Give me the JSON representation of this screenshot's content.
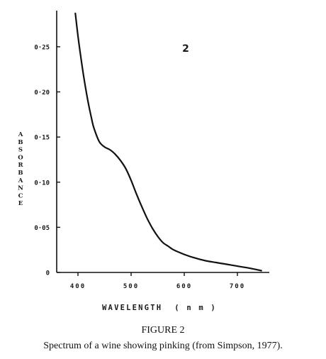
{
  "figure": {
    "number": "FIGURE 2",
    "caption": "Spectrum of a wine showing pinking (from Simpson, 1977)."
  },
  "chart_data": {
    "type": "line",
    "annotation": "2",
    "xlabel": "WAVELENGTH (nm)",
    "ylabel": "ABSORBANCE",
    "xlim": [
      360,
      760
    ],
    "ylim": [
      0,
      0.29
    ],
    "xticks": [
      400,
      500,
      600,
      700
    ],
    "xtick_labels": [
      "400",
      "500",
      "600",
      "700"
    ],
    "yticks": [
      0,
      0.05,
      0.1,
      0.15,
      0.2,
      0.25
    ],
    "ytick_labels": [
      "0",
      "0·05",
      "0·10",
      "0·15",
      "0·20",
      "0·25"
    ],
    "grid": false,
    "series": [
      {
        "x": [
          395,
          400,
          405,
          410,
          415,
          420,
          425,
          430,
          440,
          450,
          460,
          470,
          480,
          490,
          500,
          510,
          520,
          530,
          540,
          550,
          560,
          570,
          580,
          600,
          620,
          640,
          660,
          680,
          700,
          720,
          745
        ],
        "y": [
          0.287,
          0.262,
          0.24,
          0.22,
          0.202,
          0.186,
          0.172,
          0.16,
          0.145,
          0.139,
          0.136,
          0.131,
          0.124,
          0.115,
          0.102,
          0.087,
          0.073,
          0.06,
          0.049,
          0.04,
          0.033,
          0.029,
          0.025,
          0.02,
          0.016,
          0.013,
          0.011,
          0.009,
          0.007,
          0.005,
          0.002
        ]
      }
    ]
  }
}
